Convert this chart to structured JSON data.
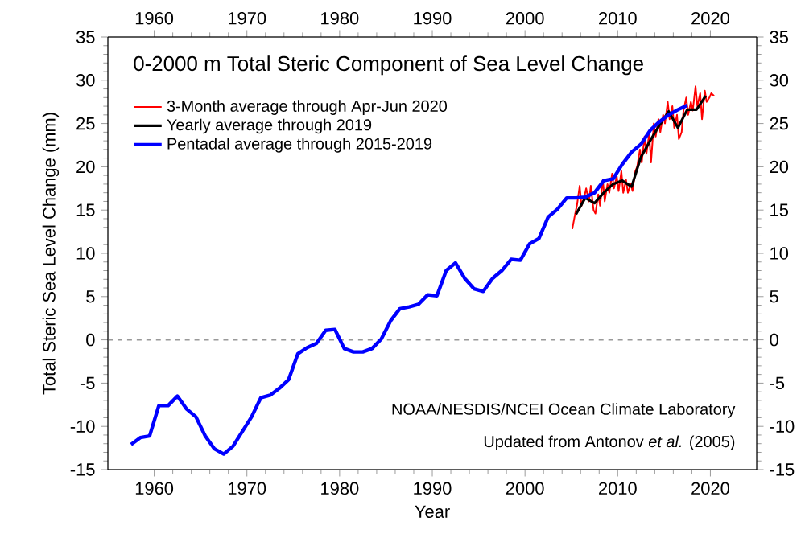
{
  "chart_data": {
    "type": "line",
    "title": "0-2000 m Total Steric Component of Sea Level Change",
    "xlabel": "Year",
    "ylabel": "Total Steric Sea Level Change (mm)",
    "xlim": [
      1955,
      2025
    ],
    "xticks": [
      1960,
      1970,
      1980,
      1990,
      2000,
      2010,
      2020
    ],
    "x2lim": [
      1955,
      2025
    ],
    "x2ticks": [
      1960,
      1970,
      1980,
      1990,
      2000,
      2010,
      2020
    ],
    "ylim": [
      -15,
      35
    ],
    "yticks": [
      -15,
      -10,
      -5,
      0,
      5,
      10,
      15,
      20,
      25,
      30,
      35
    ],
    "y2lim": [
      -15,
      35
    ],
    "y2ticks": [
      -15,
      -10,
      -5,
      0,
      5,
      10,
      15,
      20,
      25,
      30,
      35
    ],
    "grid": false,
    "legend": "top left",
    "ref_lines": [
      {
        "axis": "y",
        "value": 0,
        "color": "#999999",
        "line_style": "dashed"
      }
    ],
    "annotations": [
      "NOAA/NESDIS/NCEI Ocean Climate Laboratory",
      "Updated from Antonov *et al.* (2005)"
    ],
    "series": [
      {
        "name": "3-Month average through Apr-Jun 2020",
        "color": "#ff0000",
        "x": [
          2005.1,
          2005.4,
          2005.6,
          2005.9,
          2006.1,
          2006.4,
          2006.6,
          2006.9,
          2007.1,
          2007.4,
          2007.6,
          2007.9,
          2008.1,
          2008.4,
          2008.6,
          2008.9,
          2009.1,
          2009.4,
          2009.6,
          2009.9,
          2010.1,
          2010.4,
          2010.6,
          2010.9,
          2011.1,
          2011.4,
          2011.6,
          2011.9,
          2012.1,
          2012.4,
          2012.6,
          2012.9,
          2013.1,
          2013.4,
          2013.6,
          2013.9,
          2014.1,
          2014.4,
          2014.6,
          2014.9,
          2015.1,
          2015.4,
          2015.6,
          2015.9,
          2016.1,
          2016.4,
          2016.6,
          2016.9,
          2017.1,
          2017.4,
          2017.6,
          2017.9,
          2018.1,
          2018.4,
          2018.6,
          2018.9,
          2019.1,
          2019.4,
          2019.6,
          2019.9,
          2020.1,
          2020.4
        ],
        "values": [
          12.8,
          14.5,
          15.5,
          17.8,
          15.5,
          16.5,
          17.5,
          16.0,
          17.8,
          15.0,
          14.6,
          16.8,
          15.5,
          18.5,
          16.0,
          18.0,
          17.0,
          19.2,
          17.5,
          18.9,
          17.2,
          19.5,
          17.0,
          18.5,
          17.0,
          18.0,
          17.2,
          19.5,
          20.0,
          22.0,
          20.5,
          23.5,
          21.5,
          23.8,
          20.5,
          25.0,
          23.5,
          25.5,
          24.0,
          26.0,
          25.0,
          27.5,
          25.5,
          27.0,
          24.5,
          26.0,
          23.2,
          24.0,
          26.5,
          28.0,
          26.0,
          27.5,
          26.5,
          29.3,
          27.0,
          28.5,
          25.5,
          28.8,
          27.5,
          28.0,
          28.5,
          28.2
        ]
      },
      {
        "name": "Yearly average through 2019",
        "color": "#000000",
        "x": [
          2005.5,
          2006.5,
          2007.5,
          2008.5,
          2009.5,
          2010.5,
          2011.5,
          2012.5,
          2013.5,
          2014.5,
          2015.5,
          2016.5,
          2017.5,
          2018.5,
          2019.5
        ],
        "values": [
          14.5,
          16.4,
          15.8,
          17.0,
          18.0,
          18.4,
          17.7,
          21.1,
          23.0,
          24.8,
          26.4,
          24.5,
          26.6,
          26.6,
          28.2
        ]
      },
      {
        "name": "Pentadal average through 2015-2019",
        "color": "#0000ff",
        "x": [
          1957.5,
          1958.5,
          1959.5,
          1960.5,
          1961.5,
          1962.5,
          1963.5,
          1964.5,
          1965.5,
          1966.5,
          1967.5,
          1968.5,
          1969.5,
          1970.5,
          1971.5,
          1972.5,
          1973.5,
          1974.5,
          1975.5,
          1976.5,
          1977.5,
          1978.5,
          1979.5,
          1980.5,
          1981.5,
          1982.5,
          1983.5,
          1984.5,
          1985.5,
          1986.5,
          1987.5,
          1988.5,
          1989.5,
          1990.5,
          1991.5,
          1992.5,
          1993.5,
          1994.5,
          1995.5,
          1996.5,
          1997.5,
          1998.5,
          1999.5,
          2000.5,
          2001.5,
          2002.5,
          2003.5,
          2004.5,
          2005.5,
          2006.5,
          2007.5,
          2008.5,
          2009.5,
          2010.5,
          2011.5,
          2012.5,
          2013.5,
          2014.5,
          2015.5,
          2016.5,
          2017.5
        ],
        "values": [
          -12.1,
          -11.3,
          -11.1,
          -7.6,
          -7.6,
          -6.5,
          -8.0,
          -8.9,
          -11.1,
          -12.6,
          -13.2,
          -12.3,
          -10.6,
          -8.9,
          -6.7,
          -6.4,
          -5.6,
          -4.6,
          -1.6,
          -0.9,
          -0.4,
          1.1,
          1.2,
          -1.0,
          -1.4,
          -1.4,
          -1.0,
          0.1,
          2.2,
          3.6,
          3.8,
          4.1,
          5.2,
          5.1,
          8.0,
          8.9,
          7.1,
          5.9,
          5.6,
          7.1,
          8.0,
          9.3,
          9.2,
          11.1,
          11.7,
          14.2,
          15.1,
          16.4,
          16.4,
          16.5,
          17.0,
          18.4,
          18.6,
          20.3,
          21.7,
          22.6,
          24.2,
          25.2,
          26.0,
          26.6,
          27.1
        ]
      }
    ]
  }
}
